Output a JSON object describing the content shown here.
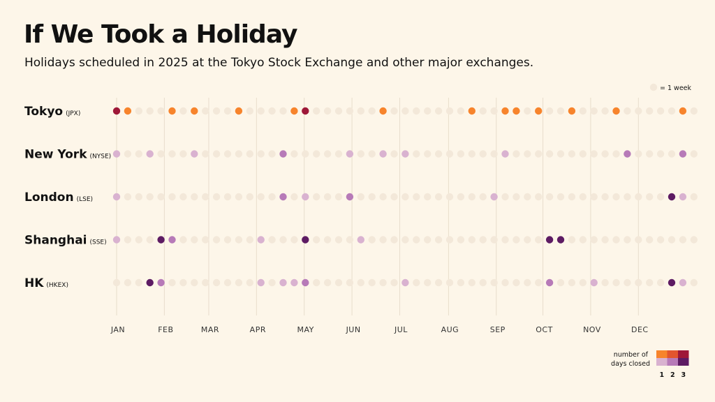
{
  "title": "If We Took a Holiday",
  "subtitle": "Holidays scheduled in 2025 at the Tokyo Stock Exchange and other major exchanges.",
  "dot_legend_label": "= 1 week",
  "color_legend": {
    "title_line1": "number of",
    "title_line2": "days closed",
    "levels": [
      "1",
      "2",
      "3"
    ],
    "orange_colors": [
      "#f7842c",
      "#e2552e",
      "#9e1838"
    ],
    "purple_colors": [
      "#d9b2d0",
      "#b77ab8",
      "#5d1b63"
    ]
  },
  "colors": {
    "background": "#fdf6e9",
    "empty_dot": "#f3e8d9",
    "gridline": "#e8ddcc"
  },
  "chart_data": {
    "type": "scatter",
    "title": "If We Took a Holiday",
    "subtitle": "Holidays scheduled in 2025 at the Tokyo Stock Exchange and other major exchanges.",
    "x_unit": "week of 2025 (1 dot = 1 week)",
    "weeks_per_row": 53,
    "months": [
      "JAN",
      "FEB",
      "MAR",
      "APR",
      "MAY",
      "JUN",
      "JUL",
      "AUG",
      "SEP",
      "OCT",
      "NOV",
      "DEC"
    ],
    "series": [
      {
        "name": "Tokyo",
        "code": "(JPX)",
        "palette": "orange",
        "holidays": [
          {
            "week": 1,
            "days_closed": 3
          },
          {
            "week": 2,
            "days_closed": 1
          },
          {
            "week": 6,
            "days_closed": 1
          },
          {
            "week": 8,
            "days_closed": 1
          },
          {
            "week": 12,
            "days_closed": 1
          },
          {
            "week": 17,
            "days_closed": 1
          },
          {
            "week": 18,
            "days_closed": 3
          },
          {
            "week": 25,
            "days_closed": 1
          },
          {
            "week": 33,
            "days_closed": 1
          },
          {
            "week": 36,
            "days_closed": 1
          },
          {
            "week": 37,
            "days_closed": 1
          },
          {
            "week": 39,
            "days_closed": 1
          },
          {
            "week": 42,
            "days_closed": 1
          },
          {
            "week": 46,
            "days_closed": 1
          },
          {
            "week": 52,
            "days_closed": 1
          }
        ]
      },
      {
        "name": "New York",
        "code": "(NYSE)",
        "palette": "purple",
        "holidays": [
          {
            "week": 1,
            "days_closed": 1
          },
          {
            "week": 4,
            "days_closed": 1
          },
          {
            "week": 8,
            "days_closed": 1
          },
          {
            "week": 16,
            "days_closed": 2
          },
          {
            "week": 22,
            "days_closed": 1
          },
          {
            "week": 25,
            "days_closed": 1
          },
          {
            "week": 27,
            "days_closed": 1
          },
          {
            "week": 36,
            "days_closed": 1
          },
          {
            "week": 47,
            "days_closed": 2
          },
          {
            "week": 52,
            "days_closed": 2
          }
        ]
      },
      {
        "name": "London",
        "code": "(LSE)",
        "palette": "purple",
        "holidays": [
          {
            "week": 1,
            "days_closed": 1
          },
          {
            "week": 16,
            "days_closed": 2
          },
          {
            "week": 18,
            "days_closed": 1
          },
          {
            "week": 22,
            "days_closed": 2
          },
          {
            "week": 35,
            "days_closed": 1
          },
          {
            "week": 51,
            "days_closed": 3
          },
          {
            "week": 52,
            "days_closed": 1
          }
        ]
      },
      {
        "name": "Shanghai",
        "code": "(SSE)",
        "palette": "purple",
        "holidays": [
          {
            "week": 1,
            "days_closed": 1
          },
          {
            "week": 5,
            "days_closed": 3
          },
          {
            "week": 6,
            "days_closed": 2
          },
          {
            "week": 14,
            "days_closed": 1
          },
          {
            "week": 18,
            "days_closed": 3
          },
          {
            "week": 23,
            "days_closed": 1
          },
          {
            "week": 40,
            "days_closed": 3
          },
          {
            "week": 41,
            "days_closed": 3
          }
        ]
      },
      {
        "name": "HK",
        "code": "(HKEX)",
        "palette": "purple",
        "holidays": [
          {
            "week": 4,
            "days_closed": 3
          },
          {
            "week": 5,
            "days_closed": 2
          },
          {
            "week": 14,
            "days_closed": 1
          },
          {
            "week": 16,
            "days_closed": 1
          },
          {
            "week": 17,
            "days_closed": 1
          },
          {
            "week": 18,
            "days_closed": 2
          },
          {
            "week": 27,
            "days_closed": 1
          },
          {
            "week": 40,
            "days_closed": 2
          },
          {
            "week": 44,
            "days_closed": 1
          },
          {
            "week": 51,
            "days_closed": 3
          },
          {
            "week": 52,
            "days_closed": 1
          }
        ]
      }
    ]
  }
}
